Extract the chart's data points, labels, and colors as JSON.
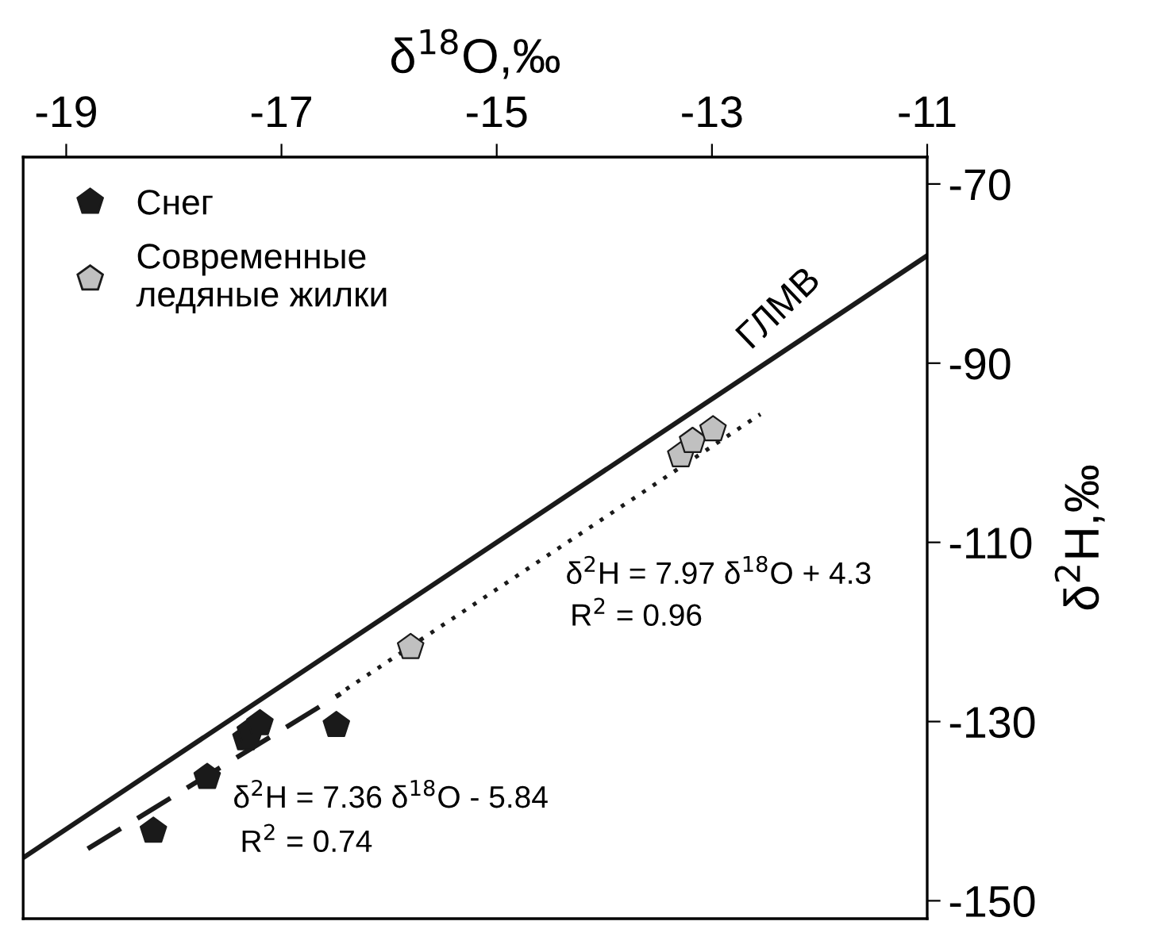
{
  "chart_data": {
    "type": "scatter",
    "xlabel": "δ$^{18}$O,‰",
    "ylabel": "δ$^{2}$H,‰",
    "xlim": [
      -19.4,
      -11
    ],
    "xticks": [
      -19,
      -17,
      -15,
      -13,
      -11
    ],
    "ylim": [
      -152,
      -67
    ],
    "yticks": [
      -70,
      -90,
      -110,
      -130,
      -150
    ],
    "grid": false,
    "legend": "top left",
    "series": [
      {
        "name": "Снег",
        "color": "#1a1a1a",
        "x": [
          -18.19,
          -17.69,
          -17.33,
          -17.29,
          -17.2,
          -16.49
        ],
        "values": [
          -142.2,
          -136.2,
          -131.9,
          -131.1,
          -130.2,
          -130.4
        ]
      },
      {
        "name": "Современные\nледяные жилки",
        "color": "#c0c0c0",
        "x": [
          -15.8,
          -13.29,
          -13.18,
          -12.99
        ],
        "values": [
          -121.7,
          -100.3,
          -98.7,
          -97.4
        ]
      },
      {
        "name": "ГЛМВ",
        "type": "line",
        "line_style": "solid",
        "color": "#1a1a1a",
        "x": [
          -19.4,
          -11
        ],
        "values": [
          -145.2,
          -78
        ]
      },
      {
        "type": "line",
        "line_style": "dashed",
        "color": "#1a1a1a",
        "x": [
          -18.8,
          -16.45
        ],
        "values": [
          -144.2,
          -126.9
        ]
      },
      {
        "type": "line",
        "line_style": "dotted",
        "color": "#1a1a1a",
        "x": [
          -16.4,
          -12.55
        ],
        "values": [
          -126.4,
          -95.7
        ]
      }
    ],
    "annotations": [
      "δ$^{2}$H = 7.97 δ$^{18}$O + 4.3",
      "R$^{2}$ = 0.96",
      "δ$^{2}$H = 7.36 δ$^{18}$O - 5.84",
      "R$^{2}$ = 0.74"
    ]
  }
}
